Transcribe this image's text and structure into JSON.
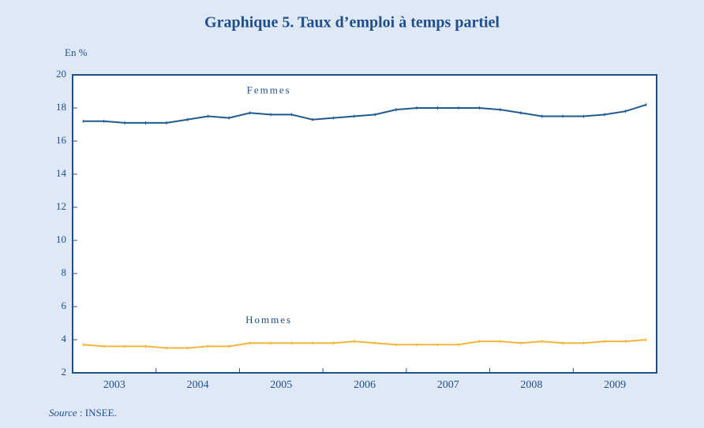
{
  "chart_data": {
    "type": "line",
    "title": "Graphique 5. Taux d’emploi à temps partiel",
    "y_unit_label": "En %",
    "x": [
      2003.125,
      2003.375,
      2003.625,
      2003.875,
      2004.125,
      2004.375,
      2004.625,
      2004.875,
      2005.125,
      2005.375,
      2005.625,
      2005.875,
      2006.125,
      2006.375,
      2006.625,
      2006.875,
      2007.125,
      2007.375,
      2007.625,
      2007.875,
      2008.125,
      2008.375,
      2008.625,
      2008.875,
      2009.125,
      2009.375,
      2009.625,
      2009.875
    ],
    "series": [
      {
        "name": "Femmes",
        "color": "#1f5a8f",
        "values": [
          17.2,
          17.2,
          17.1,
          17.1,
          17.1,
          17.3,
          17.5,
          17.4,
          17.7,
          17.6,
          17.6,
          17.3,
          17.4,
          17.5,
          17.6,
          17.9,
          18.0,
          18.0,
          18.0,
          18.0,
          17.9,
          17.7,
          17.5,
          17.5,
          17.5,
          17.6,
          17.8,
          18.2
        ]
      },
      {
        "name": "Hommes",
        "color": "#f2b53a",
        "values": [
          3.7,
          3.6,
          3.6,
          3.6,
          3.5,
          3.5,
          3.6,
          3.6,
          3.8,
          3.8,
          3.8,
          3.8,
          3.8,
          3.9,
          3.8,
          3.7,
          3.7,
          3.7,
          3.7,
          3.9,
          3.9,
          3.8,
          3.9,
          3.8,
          3.8,
          3.9,
          3.9,
          4.0
        ]
      }
    ],
    "xlim": [
      2003,
      2010
    ],
    "xticks": [
      {
        "value": 2003.5,
        "label": "2003"
      },
      {
        "value": 2004.5,
        "label": "2004"
      },
      {
        "value": 2005.5,
        "label": "2005"
      },
      {
        "value": 2006.5,
        "label": "2006"
      },
      {
        "value": 2007.5,
        "label": "2007"
      },
      {
        "value": 2008.5,
        "label": "2008"
      },
      {
        "value": 2009.5,
        "label": "2009"
      }
    ],
    "ylim": [
      2,
      20
    ],
    "yticks": [
      2,
      4,
      6,
      8,
      10,
      12,
      14,
      16,
      18,
      20
    ],
    "source_label": "Source",
    "source_text": " : INSEE."
  }
}
